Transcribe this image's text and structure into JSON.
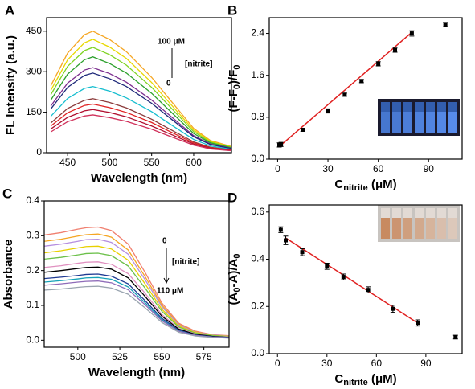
{
  "chart_data": [
    {
      "type": "line",
      "panel_label": "A",
      "x_label": [
        "Wavelength (nm)"
      ],
      "y_label": [
        "FL Intensity (a.u.)"
      ],
      "annotations": [
        "100 μM",
        "[nitrite]",
        "0"
      ],
      "xlim": [
        425,
        645
      ],
      "xticks": [
        450,
        500,
        550,
        600
      ],
      "ylim": [
        0,
        500
      ],
      "yticks": [
        0,
        150,
        300,
        450
      ],
      "x": [
        430,
        450,
        470,
        480,
        500,
        520,
        550,
        570,
        600,
        620,
        645
      ],
      "series": [
        {
          "color": "#f5a623",
          "values": [
            248,
            369,
            437,
            450,
            419,
            374,
            279,
            203,
            90,
            45,
            23
          ]
        },
        {
          "color": "#e8d800",
          "values": [
            231,
            344,
            407,
            420,
            391,
            349,
            260,
            189,
            84,
            42,
            21
          ]
        },
        {
          "color": "#7ed321",
          "values": [
            215,
            320,
            378,
            390,
            363,
            324,
            242,
            176,
            78,
            39,
            20
          ]
        },
        {
          "color": "#2ca02c",
          "values": [
            195,
            291,
            344,
            355,
            330,
            295,
            220,
            160,
            71,
            36,
            18
          ]
        },
        {
          "color": "#7b2d8e",
          "values": [
            173,
            258,
            306,
            315,
            293,
            261,
            195,
            142,
            63,
            32,
            16
          ]
        },
        {
          "color": "#1f2a7a",
          "values": [
            162,
            242,
            286,
            295,
            274,
            245,
            183,
            133,
            59,
            30,
            15
          ]
        },
        {
          "color": "#17becf",
          "values": [
            135,
            201,
            238,
            245,
            228,
            203,
            152,
            110,
            49,
            25,
            12
          ]
        },
        {
          "color": "#8b3a3a",
          "values": [
            110,
            164,
            194,
            200,
            186,
            166,
            124,
            90,
            40,
            20,
            10
          ]
        },
        {
          "color": "#e02020",
          "values": [
            99,
            148,
            175,
            180,
            167,
            149,
            112,
            81,
            36,
            18,
            9
          ]
        },
        {
          "color": "#b01030",
          "values": [
            88,
            131,
            155,
            160,
            149,
            133,
            99,
            72,
            32,
            16,
            8
          ]
        },
        {
          "color": "#d0305a",
          "values": [
            77,
            115,
            136,
            140,
            130,
            116,
            87,
            63,
            28,
            14,
            7
          ]
        }
      ]
    },
    {
      "type": "scatter",
      "panel_label": "B",
      "x_label": [
        "C",
        "nitrite",
        " (μM)"
      ],
      "y_label": [
        "(F-F",
        "0",
        ")/F",
        "0"
      ],
      "xlim": [
        -5,
        110
      ],
      "xticks": [
        0,
        30,
        60,
        90
      ],
      "ylim": [
        0,
        2.7
      ],
      "yticks": [
        {
          "value": 0,
          "label": "0.0"
        },
        0.8,
        1.6,
        2.4
      ],
      "color": "#000000",
      "x": [
        1,
        2,
        15,
        30,
        40,
        50,
        60,
        70,
        80,
        100
      ],
      "values": [
        0.27,
        0.28,
        0.56,
        0.92,
        1.23,
        1.49,
        1.82,
        2.08,
        2.4,
        2.57
      ],
      "errors": [
        0.04,
        0.04,
        0.03,
        0.04,
        0.03,
        0.03,
        0.04,
        0.04,
        0.05,
        0.04
      ],
      "fit": {
        "color": "#e02020",
        "x": [
          1,
          80
        ],
        "values": [
          0.24,
          2.42
        ]
      }
    },
    {
      "type": "line",
      "panel_label": "C",
      "x_label": [
        "Wavelength (nm)"
      ],
      "y_label": [
        "Absorbance"
      ],
      "annotations": [
        "0",
        "[nitrite]",
        "110 μM"
      ],
      "xlim": [
        480,
        590
      ],
      "xticks": [
        500,
        525,
        550,
        575
      ],
      "ylim": [
        -0.02,
        0.4
      ],
      "yticks": [
        {
          "value": 0,
          "label": "0.0"
        },
        0.1,
        0.2,
        0.3,
        0.4
      ],
      "x": [
        480,
        490,
        500,
        505,
        512,
        520,
        530,
        540,
        550,
        560,
        570,
        580,
        590
      ],
      "series": [
        {
          "color": "#f08070",
          "values": [
            0.302,
            0.309,
            0.319,
            0.323,
            0.325,
            0.315,
            0.276,
            0.195,
            0.107,
            0.049,
            0.026,
            0.016,
            0.013
          ]
        },
        {
          "color": "#f5a623",
          "values": [
            0.284,
            0.29,
            0.299,
            0.303,
            0.305,
            0.296,
            0.259,
            0.183,
            0.101,
            0.046,
            0.024,
            0.015,
            0.012
          ]
        },
        {
          "color": "#b58ee0",
          "values": [
            0.27,
            0.276,
            0.284,
            0.289,
            0.29,
            0.281,
            0.247,
            0.174,
            0.096,
            0.044,
            0.023,
            0.015,
            0.012
          ]
        },
        {
          "color": "#e8d000",
          "values": [
            0.251,
            0.257,
            0.265,
            0.269,
            0.27,
            0.262,
            0.23,
            0.162,
            0.089,
            0.041,
            0.022,
            0.014,
            0.011
          ]
        },
        {
          "color": "#6cc04a",
          "values": [
            0.233,
            0.238,
            0.245,
            0.249,
            0.25,
            0.243,
            0.213,
            0.15,
            0.083,
            0.038,
            0.02,
            0.013,
            0.01
          ]
        },
        {
          "color": "#e090c0",
          "values": [
            0.209,
            0.214,
            0.221,
            0.224,
            0.225,
            0.218,
            0.191,
            0.135,
            0.074,
            0.034,
            0.018,
            0.011,
            0.009
          ]
        },
        {
          "color": "#000000",
          "values": [
            0.195,
            0.2,
            0.206,
            0.209,
            0.21,
            0.204,
            0.179,
            0.126,
            0.069,
            0.032,
            0.017,
            0.011,
            0.008
          ]
        },
        {
          "color": "#1f3a93",
          "values": [
            0.177,
            0.181,
            0.186,
            0.189,
            0.19,
            0.184,
            0.162,
            0.114,
            0.063,
            0.029,
            0.015,
            0.01,
            0.008
          ]
        },
        {
          "color": "#17a2b8",
          "values": [
            0.167,
            0.171,
            0.176,
            0.179,
            0.18,
            0.175,
            0.153,
            0.108,
            0.059,
            0.027,
            0.014,
            0.009,
            0.007
          ]
        },
        {
          "color": "#8e6bb8",
          "values": [
            0.158,
            0.162,
            0.167,
            0.169,
            0.17,
            0.165,
            0.145,
            0.102,
            0.056,
            0.026,
            0.014,
            0.009,
            0.007
          ]
        },
        {
          "color": "#9aa5b0",
          "values": [
            0.144,
            0.147,
            0.152,
            0.154,
            0.155,
            0.15,
            0.132,
            0.093,
            0.051,
            0.023,
            0.012,
            0.008,
            0.006
          ]
        }
      ]
    },
    {
      "type": "scatter",
      "panel_label": "D",
      "x_label": [
        "C",
        "nitrite",
        " (μM)"
      ],
      "y_label": [
        "(A",
        "0",
        "-A)/A",
        "0"
      ],
      "xlim": [
        -5,
        112
      ],
      "xticks": [
        0,
        30,
        60,
        90
      ],
      "ylim": [
        0,
        0.63
      ],
      "yticks": [
        {
          "value": 0,
          "label": "0.0"
        },
        0.2,
        0.4,
        0.6
      ],
      "color": "#000000",
      "x": [
        2,
        5,
        15,
        30,
        40,
        55,
        70,
        85,
        108
      ],
      "values": [
        0.525,
        0.48,
        0.43,
        0.37,
        0.325,
        0.27,
        0.19,
        0.13,
        0.07
      ],
      "errors": [
        0.012,
        0.018,
        0.015,
        0.013,
        0.012,
        0.013,
        0.015,
        0.013,
        0.008
      ],
      "fit": {
        "color": "#e02020",
        "x": [
          5,
          85
        ],
        "values": [
          0.49,
          0.13
        ]
      }
    }
  ]
}
